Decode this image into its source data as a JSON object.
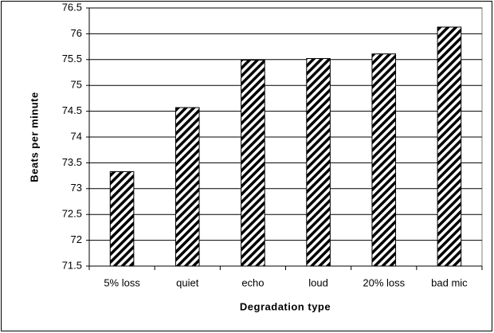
{
  "chart_data": {
    "type": "bar",
    "categories": [
      "5% loss",
      "quiet",
      "echo",
      "loud",
      "20% loss",
      "bad mic"
    ],
    "values": [
      73.33,
      74.57,
      75.49,
      75.52,
      75.61,
      76.13
    ],
    "color": "#000000",
    "xlabel": "Degradation type",
    "ylabel": "Beats per minute",
    "ylim": [
      71.5,
      76.5
    ],
    "yticks": [
      71.5,
      72,
      72.5,
      73,
      73.5,
      74,
      74.5,
      75,
      75.5,
      76,
      76.5
    ],
    "grid": true
  }
}
